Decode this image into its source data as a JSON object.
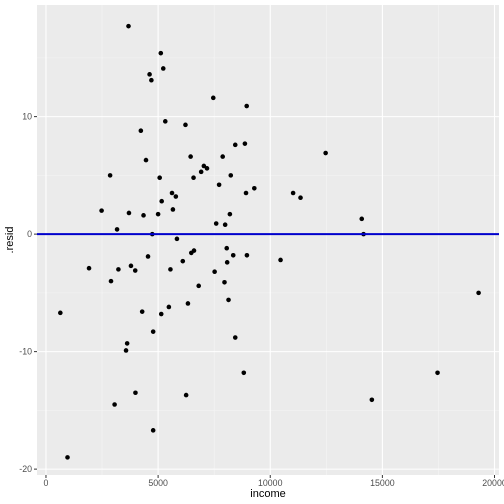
{
  "chart_data": {
    "type": "scatter",
    "xlabel": "income",
    "ylabel": ".resid",
    "xlim": [
      -400,
      20200
    ],
    "ylim": [
      -20.5,
      19.5
    ],
    "x_ticks": [
      0,
      5000,
      10000,
      15000,
      20000
    ],
    "x_tick_labels": [
      "0",
      "5000",
      "10000",
      "15000",
      "20000"
    ],
    "y_ticks": [
      -20,
      -10,
      0,
      10
    ],
    "y_tick_labels": [
      "-20",
      "-10",
      "0",
      "10"
    ],
    "grid": true,
    "panel_background": "#ebebeb",
    "point_color": "#000000",
    "reference_line": {
      "y": 0,
      "color": "#0000cc"
    },
    "points": [
      {
        "x": 640,
        "y": -6.7
      },
      {
        "x": 960,
        "y": -19.0
      },
      {
        "x": 1920,
        "y": -2.9
      },
      {
        "x": 2480,
        "y": 2.0
      },
      {
        "x": 2860,
        "y": 5.0
      },
      {
        "x": 2900,
        "y": -4.0
      },
      {
        "x": 3060,
        "y": -14.5
      },
      {
        "x": 3170,
        "y": 0.4
      },
      {
        "x": 3230,
        "y": -3.0
      },
      {
        "x": 3570,
        "y": -9.9
      },
      {
        "x": 3620,
        "y": -9.3
      },
      {
        "x": 3680,
        "y": 17.7
      },
      {
        "x": 3700,
        "y": 1.8
      },
      {
        "x": 3790,
        "y": -2.7
      },
      {
        "x": 3980,
        "y": -3.1
      },
      {
        "x": 3990,
        "y": -13.5
      },
      {
        "x": 4230,
        "y": 8.8
      },
      {
        "x": 4290,
        "y": -6.6
      },
      {
        "x": 4350,
        "y": 1.6
      },
      {
        "x": 4460,
        "y": 6.3
      },
      {
        "x": 4550,
        "y": -1.9
      },
      {
        "x": 4620,
        "y": 13.6
      },
      {
        "x": 4700,
        "y": 13.1
      },
      {
        "x": 4740,
        "y": 0.0
      },
      {
        "x": 4780,
        "y": -8.3
      },
      {
        "x": 4780,
        "y": -16.7
      },
      {
        "x": 5000,
        "y": 1.7
      },
      {
        "x": 5070,
        "y": 4.8
      },
      {
        "x": 5120,
        "y": 15.4
      },
      {
        "x": 5140,
        "y": -6.8
      },
      {
        "x": 5160,
        "y": 2.8
      },
      {
        "x": 5230,
        "y": 14.1
      },
      {
        "x": 5320,
        "y": 9.6
      },
      {
        "x": 5480,
        "y": -6.2
      },
      {
        "x": 5550,
        "y": -3.0
      },
      {
        "x": 5620,
        "y": 3.5
      },
      {
        "x": 5660,
        "y": 2.1
      },
      {
        "x": 5790,
        "y": 3.2
      },
      {
        "x": 5840,
        "y": -0.4
      },
      {
        "x": 6100,
        "y": -2.3
      },
      {
        "x": 6220,
        "y": 9.3
      },
      {
        "x": 6250,
        "y": -13.7
      },
      {
        "x": 6330,
        "y": -5.9
      },
      {
        "x": 6450,
        "y": 6.6
      },
      {
        "x": 6480,
        "y": -1.6
      },
      {
        "x": 6580,
        "y": 4.8
      },
      {
        "x": 6600,
        "y": -1.4
      },
      {
        "x": 6810,
        "y": -4.4
      },
      {
        "x": 6920,
        "y": 5.3
      },
      {
        "x": 7040,
        "y": 5.8
      },
      {
        "x": 7180,
        "y": 5.6
      },
      {
        "x": 7460,
        "y": 11.6
      },
      {
        "x": 7520,
        "y": -3.2
      },
      {
        "x": 7590,
        "y": 0.9
      },
      {
        "x": 7720,
        "y": 4.2
      },
      {
        "x": 7880,
        "y": 6.6
      },
      {
        "x": 7960,
        "y": -4.1
      },
      {
        "x": 7990,
        "y": 0.8
      },
      {
        "x": 8060,
        "y": -1.2
      },
      {
        "x": 8080,
        "y": -2.4
      },
      {
        "x": 8140,
        "y": -5.6
      },
      {
        "x": 8200,
        "y": 1.7
      },
      {
        "x": 8240,
        "y": 5.0
      },
      {
        "x": 8350,
        "y": -1.8
      },
      {
        "x": 8440,
        "y": 7.6
      },
      {
        "x": 8440,
        "y": -8.8
      },
      {
        "x": 8820,
        "y": -11.8
      },
      {
        "x": 8870,
        "y": 7.7
      },
      {
        "x": 8920,
        "y": 3.5
      },
      {
        "x": 8950,
        "y": 10.9
      },
      {
        "x": 8960,
        "y": -1.8
      },
      {
        "x": 9290,
        "y": 3.9
      },
      {
        "x": 10460,
        "y": -2.2
      },
      {
        "x": 11020,
        "y": 3.5
      },
      {
        "x": 11350,
        "y": 3.1
      },
      {
        "x": 12470,
        "y": 6.9
      },
      {
        "x": 14080,
        "y": 1.3
      },
      {
        "x": 14160,
        "y": 0.0
      },
      {
        "x": 14530,
        "y": -14.1
      },
      {
        "x": 17460,
        "y": -11.8
      },
      {
        "x": 19290,
        "y": -5.0
      }
    ]
  }
}
